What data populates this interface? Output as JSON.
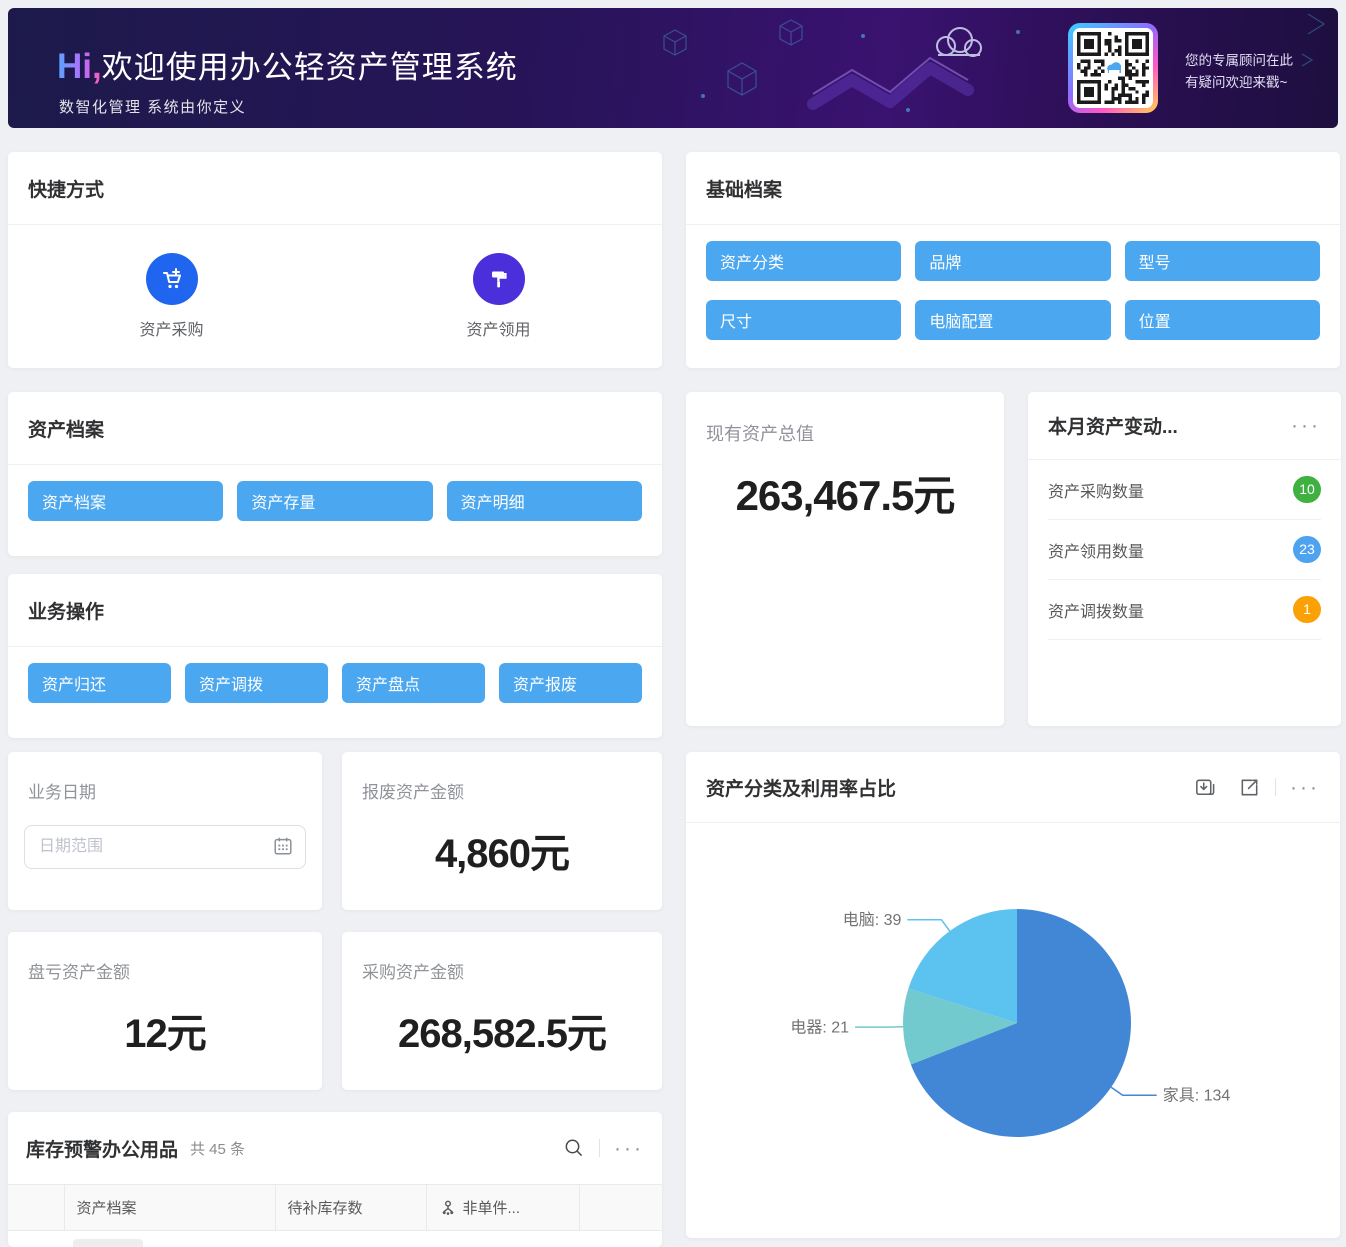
{
  "banner": {
    "greeting": "Hi,",
    "title": "欢迎使用办公轻资产管理系统",
    "subtitle": "数智化管理 系统由你定义",
    "qr_line1": "您的专属顾问在此",
    "qr_line2": "有疑问欢迎来戳~"
  },
  "quick_access": {
    "title": "快捷方式",
    "items": [
      {
        "label": "资产采购",
        "icon": "cart-plus-icon",
        "color": "#2065ef"
      },
      {
        "label": "资产领用",
        "icon": "paint-roller-icon",
        "color": "#4b2fdb"
      }
    ]
  },
  "basic_archives": {
    "title": "基础档案",
    "buttons": [
      "资产分类",
      "品牌",
      "型号",
      "尺寸",
      "电脑配置",
      "位置"
    ]
  },
  "asset_archives": {
    "title": "资产档案",
    "buttons": [
      "资产档案",
      "资产存量",
      "资产明细"
    ]
  },
  "operations": {
    "title": "业务操作",
    "buttons": [
      "资产归还",
      "资产调拨",
      "资产盘点",
      "资产报废"
    ]
  },
  "total_assets": {
    "label": "现有资产总值",
    "value": "263,467.5元"
  },
  "monthly_changes": {
    "title": "本月资产变动...",
    "rows": [
      {
        "label": "资产采购数量",
        "count": "10",
        "color": "#3fb140"
      },
      {
        "label": "资产领用数量",
        "count": "23",
        "color": "#4da3f0"
      },
      {
        "label": "资产调拨数量",
        "count": "1",
        "color": "#fba105"
      }
    ]
  },
  "business_date": {
    "label": "业务日期",
    "placeholder": "日期范围"
  },
  "scrap_amount": {
    "label": "报废资产金额",
    "value": "4,860元"
  },
  "loss_amount": {
    "label": "盘亏资产金额",
    "value": "12元"
  },
  "purchase_amount": {
    "label": "采购资产金额",
    "value": "268,582.5元"
  },
  "inventory_warning": {
    "title": "库存预警办公用品",
    "count_text": "共 45 条",
    "columns": [
      "资产档案",
      "待补库存数",
      "非单件..."
    ]
  },
  "pie_card": {
    "title": "资产分类及利用率占比"
  },
  "chart_data": {
    "type": "pie",
    "title": "资产分类及利用率占比",
    "label_format": "{name}: {value}",
    "start_angle": "top",
    "direction": "clockwise",
    "total": 194,
    "slices": [
      {
        "name": "家具",
        "value": 134,
        "color": "#4287d5"
      },
      {
        "name": "电器",
        "value": 21,
        "color": "#72c9ce"
      },
      {
        "name": "电脑",
        "value": 39,
        "color": "#5cc2f0"
      }
    ]
  }
}
